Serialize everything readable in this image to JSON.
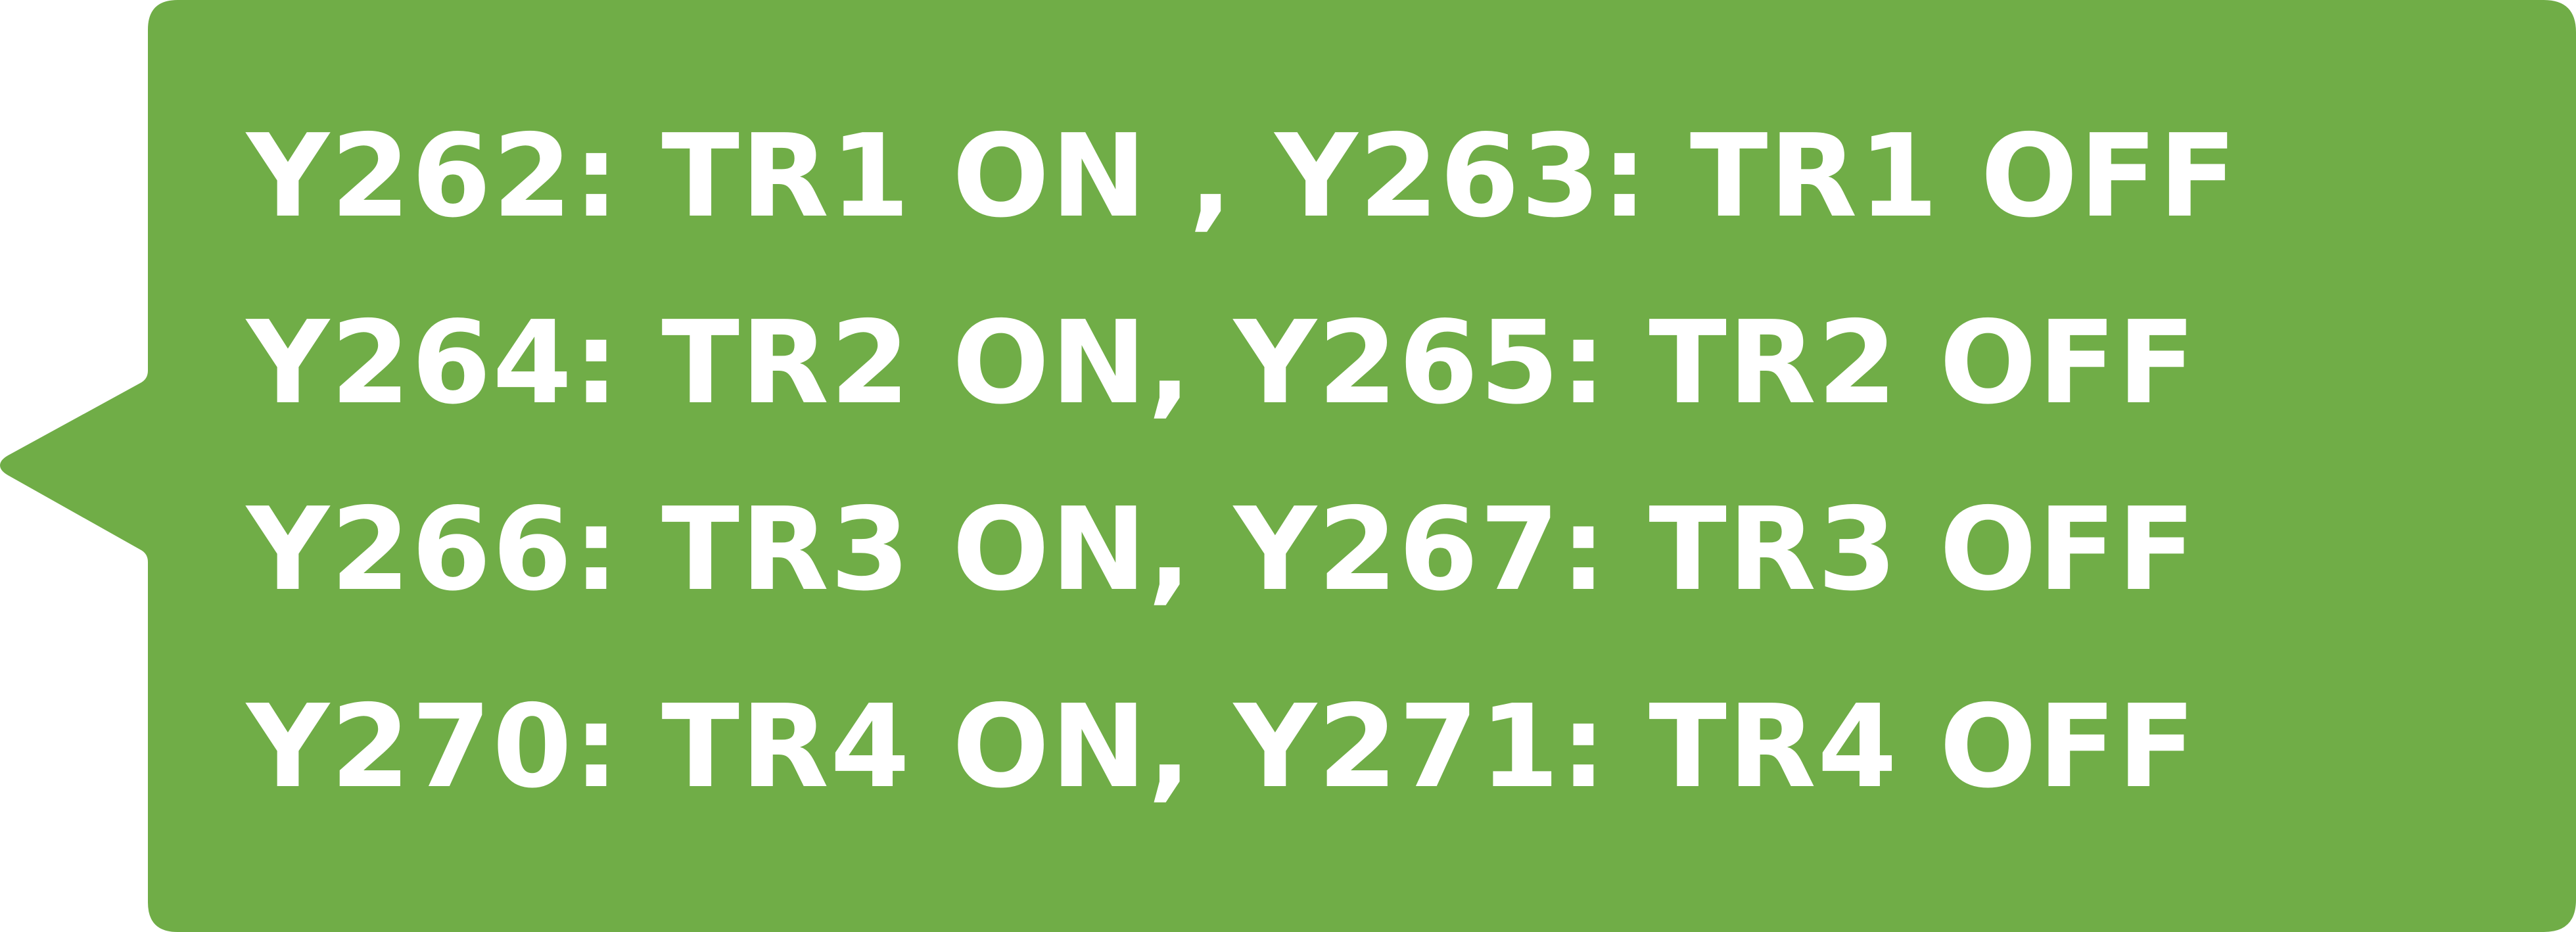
{
  "callout": {
    "background_color": "#70AD47",
    "text_color": "#FFFFFF",
    "lines": [
      "Y262: TR1 ON , Y263: TR1 OFF",
      "Y264: TR2 ON, Y265: TR2 OFF",
      "Y266: TR3 ON, Y267: TR3 OFF",
      "Y270: TR4 ON, Y271: TR4 OFF"
    ]
  }
}
